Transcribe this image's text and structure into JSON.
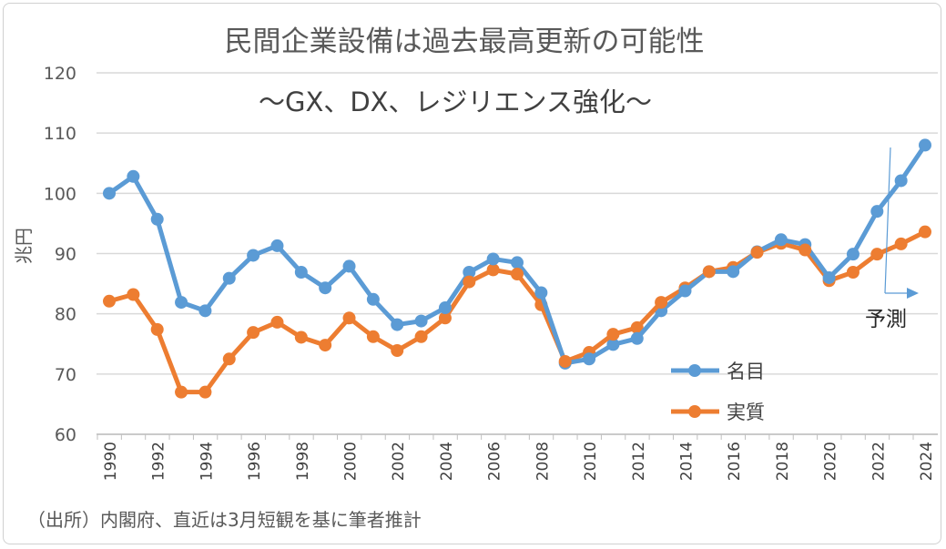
{
  "chart_data": {
    "type": "line",
    "title": "民間企業設備は過去最高更新の可能性",
    "subtitle": "〜GX、DX、レジリエンス強化〜",
    "ylabel": "兆円",
    "xlabel": "",
    "ylim": [
      60,
      120
    ],
    "yticks": [
      60,
      70,
      80,
      90,
      100,
      110,
      120
    ],
    "grid": true,
    "legend_position": "center-right",
    "x": [
      1990,
      1991,
      1992,
      1993,
      1994,
      1995,
      1996,
      1997,
      1998,
      1999,
      2000,
      2001,
      2002,
      2003,
      2004,
      2005,
      2006,
      2007,
      2008,
      2009,
      2010,
      2011,
      2012,
      2013,
      2014,
      2015,
      2016,
      2017,
      2018,
      2019,
      2020,
      2021,
      2022,
      2023,
      2024
    ],
    "xtick_labels": [
      "1990",
      "1992",
      "1994",
      "1996",
      "1998",
      "2000",
      "2002",
      "2004",
      "2006",
      "2008",
      "2010",
      "2012",
      "2014",
      "2016",
      "2018",
      "2020",
      "2022",
      "2024"
    ],
    "series": [
      {
        "name": "名目",
        "color": "#5b9bd5",
        "values": [
          100,
          102.8,
          95.7,
          81.9,
          80.5,
          85.9,
          89.7,
          91.3,
          86.9,
          84.3,
          87.9,
          82.4,
          78.2,
          78.8,
          81.0,
          86.9,
          89.1,
          88.5,
          83.5,
          71.8,
          72.5,
          74.9,
          75.9,
          80.5,
          83.8,
          87.0,
          87.0,
          90.3,
          92.3,
          91.5,
          86.0,
          89.9,
          97.0,
          102.1,
          108.0
        ]
      },
      {
        "name": "実質",
        "color": "#ed7d31",
        "values": [
          82.1,
          83.2,
          77.4,
          67.0,
          67.0,
          72.5,
          76.9,
          78.6,
          76.1,
          74.8,
          79.3,
          76.2,
          73.9,
          76.2,
          79.3,
          85.3,
          87.3,
          86.6,
          81.5,
          72.1,
          73.6,
          76.6,
          77.7,
          81.9,
          84.3,
          87.0,
          87.7,
          90.2,
          91.7,
          90.6,
          85.5,
          86.9,
          89.9,
          91.6,
          93.6
        ]
      }
    ],
    "annotation": "予測",
    "forecast_from_year": 2022.3,
    "source": "（出所）内閣府、直近は3月短観を基に筆者推計"
  }
}
